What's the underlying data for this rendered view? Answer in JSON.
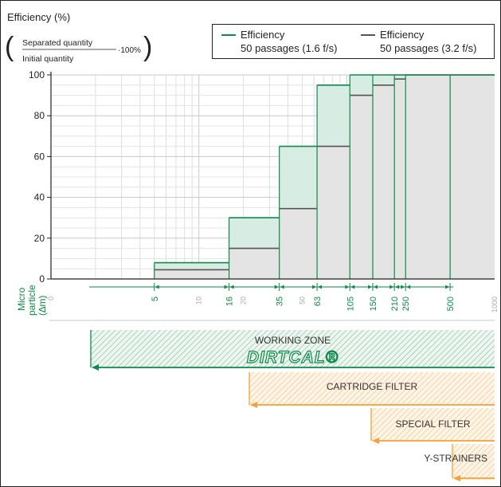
{
  "chart_data": {
    "type": "bar",
    "title": "Efficiency (%)",
    "formula": {
      "numerator": "Separated quantity",
      "denominator": "Initial quantity",
      "multiplier": "·100%"
    },
    "ylabel": "Efficiency (%)",
    "ylim": [
      0,
      100
    ],
    "yticks": [
      "0",
      "20",
      "40",
      "60",
      "80",
      "100"
    ],
    "xlabel": "Micro particle (∆m)",
    "x_scale": "log",
    "xlim": [
      1,
      1000
    ],
    "axis_ticks": [
      "0",
      "10",
      "20",
      "50",
      "1000"
    ],
    "boundaries": [
      5,
      16,
      35,
      63,
      105,
      150,
      210,
      250,
      500
    ],
    "boundary_labels": [
      "5",
      "16",
      "35",
      "63",
      "105",
      "150",
      "210",
      "250",
      "500"
    ],
    "series": [
      {
        "name": "Efficiency 50 passages (1.6 f/s)",
        "color": "#0f8a4a",
        "fill": "#d7ece2",
        "bins": [
          {
            "from": 5,
            "to": 16,
            "value": 8
          },
          {
            "from": 16,
            "to": 35,
            "value": 30
          },
          {
            "from": 35,
            "to": 63,
            "value": 65
          },
          {
            "from": 63,
            "to": 105,
            "value": 95
          },
          {
            "from": 105,
            "to": 150,
            "value": 100
          },
          {
            "from": 150,
            "to": 210,
            "value": 100
          },
          {
            "from": 210,
            "to": 250,
            "value": 100
          },
          {
            "from": 250,
            "to": 500,
            "value": 100
          },
          {
            "from": 500,
            "to": 1000,
            "value": 100
          }
        ]
      },
      {
        "name": "Efficiency 50 passages (3.2 f/s)",
        "color": "#555555",
        "fill": "#e4e4e4",
        "bins": [
          {
            "from": 5,
            "to": 16,
            "value": 4.5
          },
          {
            "from": 16,
            "to": 35,
            "value": 15
          },
          {
            "from": 35,
            "to": 63,
            "value": 34.5
          },
          {
            "from": 63,
            "to": 105,
            "value": 65
          },
          {
            "from": 105,
            "to": 150,
            "value": 90
          },
          {
            "from": 150,
            "to": 210,
            "value": 95
          },
          {
            "from": 210,
            "to": 250,
            "value": 98
          },
          {
            "from": 250,
            "to": 500,
            "value": 100
          },
          {
            "from": 500,
            "to": 1000,
            "value": 100
          }
        ]
      }
    ],
    "legend": [
      {
        "line1": "Efficiency",
        "line2": "50 passages (1.6 f/s)",
        "color": "#0f8a4a"
      },
      {
        "line1": "Efficiency",
        "line2": "50 passages (3.2 f/s)",
        "color": "#555555"
      }
    ],
    "legend_position": "top-right",
    "grid": true,
    "zones": [
      {
        "label": "WORKING ZONE",
        "from": 5,
        "to": 1000,
        "color": "#0f8a4a"
      },
      {
        "label": "CARTRIDGE FILTER",
        "from": 50,
        "to": 1000,
        "color": "#f5a03a"
      },
      {
        "label": "SPECIAL FILTER",
        "from": 200,
        "to": 1000,
        "color": "#f5a03a"
      },
      {
        "label": "Y-STRAINERS",
        "from": 550,
        "to": 1000,
        "color": "#f5a03a"
      }
    ],
    "brand": "DIRTCAL®"
  }
}
